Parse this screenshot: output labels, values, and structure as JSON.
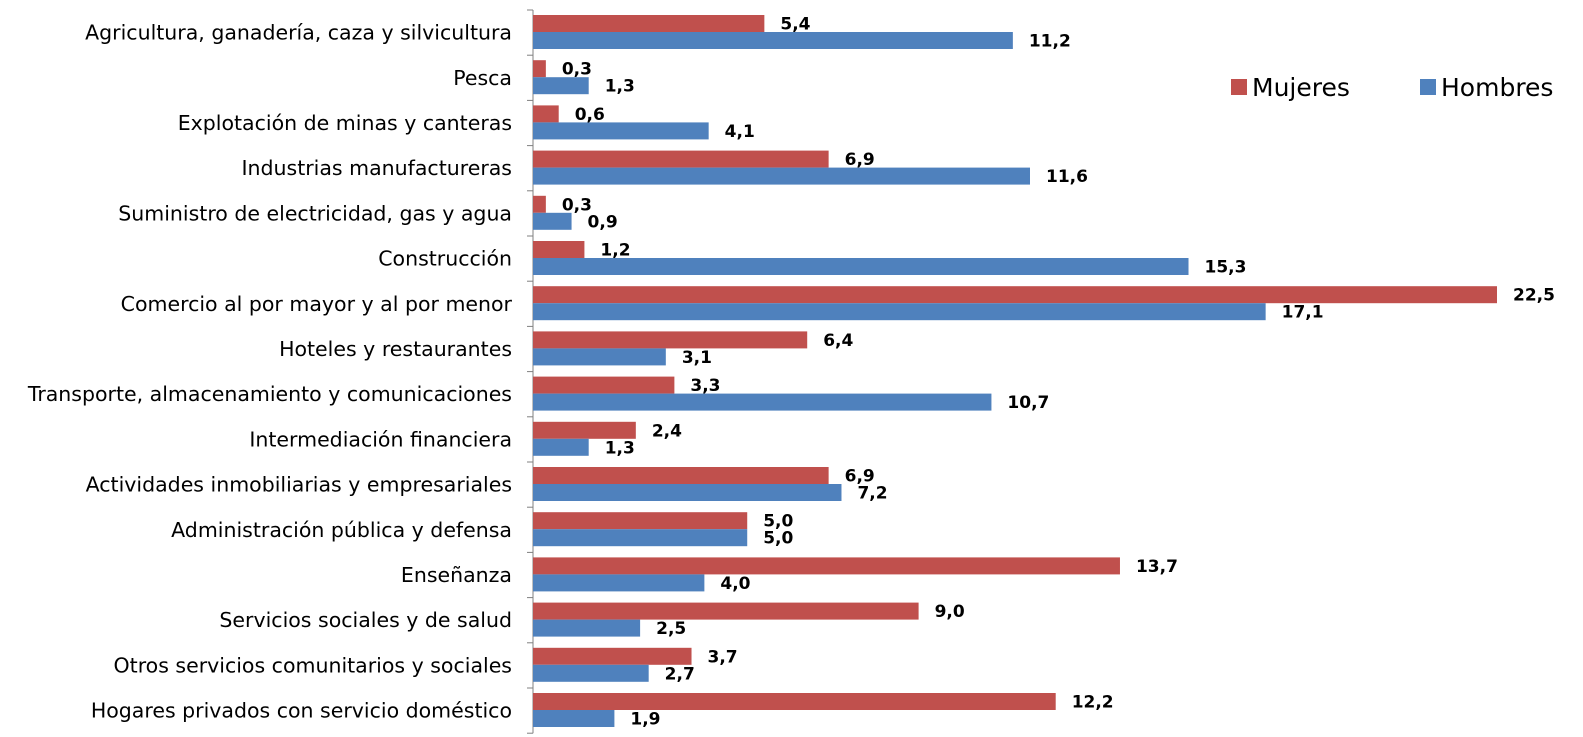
{
  "chart_data": {
    "type": "bar",
    "orientation": "horizontal",
    "categories": [
      "Agricultura, ganadería, caza y silvicultura",
      "Pesca",
      "Explotación de minas y canteras",
      "Industrias manufactureras",
      "Suministro de electricidad, gas y agua",
      "Construcción",
      "Comercio al por mayor y al por menor",
      "Hoteles y restaurantes",
      "Transporte, almacenamiento y comunicaciones",
      "Intermediación financiera",
      "Actividades inmobiliarias y empresariales",
      "Administración pública y defensa",
      "Enseñanza",
      "Servicios sociales y de salud",
      "Otros servicios comunitarios y sociales",
      "Hogares privados con servicio doméstico"
    ],
    "series": [
      {
        "name": "Mujeres",
        "color": "#C0504D",
        "values": [
          5.4,
          0.3,
          0.6,
          6.9,
          0.3,
          1.2,
          22.5,
          6.4,
          3.3,
          2.4,
          6.9,
          5.0,
          13.7,
          9.0,
          3.7,
          12.2
        ],
        "labels": [
          "5,4",
          "0,3",
          "0,6",
          "6,9",
          "0,3",
          "1,2",
          "22,5",
          "6,4",
          "3,3",
          "2,4",
          "6,9",
          "5,0",
          "13,7",
          "9,0",
          "3,7",
          "12,2"
        ]
      },
      {
        "name": "Hombres",
        "color": "#4F81BD",
        "values": [
          11.2,
          1.3,
          4.1,
          11.6,
          0.9,
          15.3,
          17.1,
          3.1,
          10.7,
          1.3,
          7.2,
          5.0,
          4.0,
          2.5,
          2.7,
          1.9
        ],
        "labels": [
          "11,2",
          "1,3",
          "4,1",
          "11,6",
          "0,9",
          "15,3",
          "17,1",
          "3,1",
          "10,7",
          "1,3",
          "7,2",
          "5,0",
          "4,0",
          "2,5",
          "2,7",
          "1,9"
        ]
      }
    ],
    "xlim": [
      0,
      22.5
    ],
    "legend_position": "top-right",
    "grid": false,
    "title": "",
    "xlabel": "",
    "ylabel": ""
  }
}
